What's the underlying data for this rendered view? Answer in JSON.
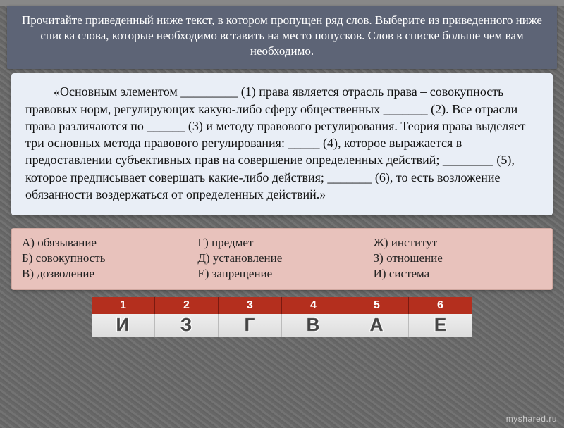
{
  "header": {
    "text": "Прочитайте приведенный ниже текст, в котором пропущен ряд слов. Выберите из приведенного ниже списка слова, которые необходимо вставить на место попусков. Слов в списке больше чем вам необходимо."
  },
  "body": {
    "text": "«Основным элементом _________ (1) права является отрасль права – совокупность правовых норм, регулирующих какую-либо сферу общественных _______ (2). Все отрасли права различаются по ______ (3) и методу правового регулирования. Теория права выделяет три основных метода правового регулирования: _____ (4), которое выражается в предоставлении субъективных прав на совершение определенных действий; ________ (5), которое предписывает совершать какие-либо действия; _______ (6), то есть возложение обязанности воздержаться от определенных действий.»"
  },
  "options": {
    "col1": [
      "А) обязывание",
      "Б) совокупность",
      "В) дозволение"
    ],
    "col2": [
      "Г) предмет",
      "Д) установление",
      "Е) запрещение"
    ],
    "col3": [
      "Ж) институт",
      "З) отношение",
      "И) система"
    ]
  },
  "answers": {
    "numbers": [
      "1",
      "2",
      "3",
      "4",
      "5",
      "6"
    ],
    "letters": [
      "И",
      "З",
      "Г",
      "В",
      "А",
      "Е"
    ]
  },
  "watermark": "myshared.ru",
  "colors": {
    "header_bg": "#5d6476",
    "main_bg": "#e9eef6",
    "options_bg": "#e8c2bc",
    "num_bg": "#b42f1e"
  }
}
